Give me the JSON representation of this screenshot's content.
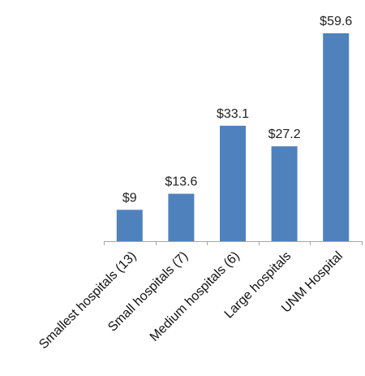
{
  "chart_data": {
    "type": "bar",
    "categories": [
      "Smallest hospitals (13)",
      "Small hospitals (7)",
      "Medium hospitals (6)",
      "Large hospitals",
      "UNM Hospital"
    ],
    "values": [
      9,
      13.6,
      33.1,
      27.2,
      59.6
    ],
    "data_labels": [
      "$9",
      "$13.6",
      "$33.1",
      "$27.2",
      "$59.6"
    ],
    "bar_color": "#4F81BD",
    "axis_color": "#A6A6A6",
    "ylim": [
      0,
      59.6
    ],
    "grid": false,
    "legend": "none",
    "title": "",
    "xlabel": "",
    "ylabel": ""
  }
}
